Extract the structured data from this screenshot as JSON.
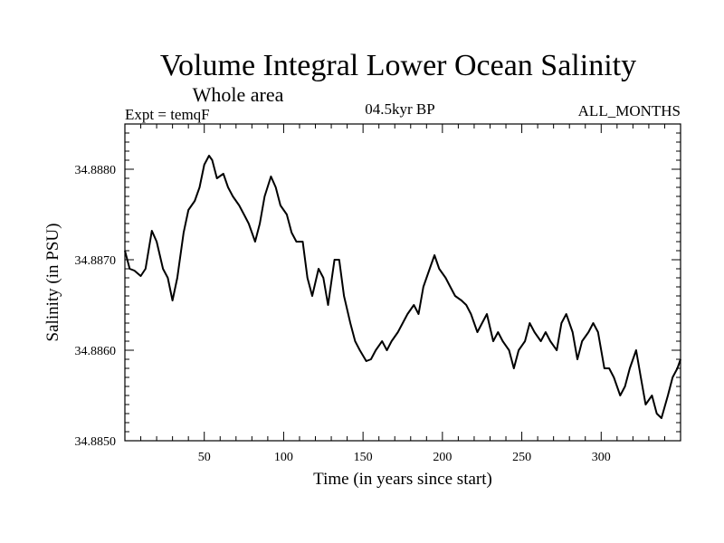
{
  "chart_data": {
    "type": "line",
    "title": "Volume Integral Lower Ocean Salinity",
    "subtitle": "Whole area",
    "experiment": "Expt = temqF",
    "period": "04.5kyr BP",
    "months": "ALL_MONTHS",
    "xlabel": "Time (in years since start)",
    "ylabel": "Salinity (in PSU)",
    "xlim": [
      0,
      350
    ],
    "ylim": [
      34.885,
      34.8885
    ],
    "xticks": [
      50,
      100,
      150,
      200,
      250,
      300
    ],
    "xtick_labels": [
      "50",
      "100",
      "150",
      "200",
      "250",
      "300"
    ],
    "yticks": [
      34.885,
      34.886,
      34.887,
      34.888
    ],
    "ytick_labels": [
      "34.8850",
      "34.8860",
      "34.8870",
      "34.8880"
    ],
    "grid": false,
    "series": [
      {
        "name": "salinity",
        "x": [
          0,
          3,
          6,
          10,
          13,
          17,
          20,
          24,
          27,
          30,
          33,
          37,
          40,
          44,
          47,
          50,
          53,
          55,
          58,
          62,
          65,
          68,
          72,
          75,
          78,
          82,
          85,
          88,
          92,
          95,
          98,
          102,
          105,
          108,
          112,
          115,
          118,
          122,
          125,
          128,
          132,
          135,
          138,
          142,
          145,
          148,
          152,
          155,
          158,
          162,
          165,
          168,
          172,
          175,
          178,
          182,
          185,
          188,
          192,
          195,
          198,
          202,
          205,
          208,
          212,
          215,
          218,
          222,
          225,
          228,
          232,
          235,
          238,
          242,
          245,
          248,
          252,
          255,
          258,
          262,
          265,
          268,
          272,
          275,
          278,
          282,
          285,
          288,
          292,
          295,
          298,
          302,
          305,
          308,
          312,
          315,
          318,
          322,
          325,
          328,
          332,
          335,
          338,
          342,
          345,
          348,
          350
        ],
        "y": [
          34.8871,
          34.8869,
          34.88688,
          34.88682,
          34.8869,
          34.88732,
          34.8872,
          34.8869,
          34.8868,
          34.88655,
          34.8868,
          34.8873,
          34.88755,
          34.88765,
          34.8878,
          34.88805,
          34.88815,
          34.8881,
          34.8879,
          34.88795,
          34.8878,
          34.8877,
          34.8876,
          34.8875,
          34.8874,
          34.8872,
          34.8874,
          34.8877,
          34.88792,
          34.8878,
          34.8876,
          34.8875,
          34.8873,
          34.8872,
          34.8872,
          34.8868,
          34.8866,
          34.8869,
          34.8868,
          34.8865,
          34.887,
          34.887,
          34.8866,
          34.8863,
          34.8861,
          34.886,
          34.88588,
          34.8859,
          34.886,
          34.8861,
          34.886,
          34.8861,
          34.8862,
          34.8863,
          34.8864,
          34.8865,
          34.8864,
          34.8867,
          34.8869,
          34.88705,
          34.8869,
          34.8868,
          34.8867,
          34.8866,
          34.88655,
          34.8865,
          34.8864,
          34.8862,
          34.8863,
          34.8864,
          34.8861,
          34.8862,
          34.8861,
          34.886,
          34.8858,
          34.886,
          34.8861,
          34.8863,
          34.8862,
          34.8861,
          34.8862,
          34.8861,
          34.886,
          34.8863,
          34.8864,
          34.8862,
          34.8859,
          34.8861,
          34.8862,
          34.8863,
          34.8862,
          34.8858,
          34.8858,
          34.8857,
          34.8855,
          34.8856,
          34.8858,
          34.886,
          34.8857,
          34.8854,
          34.8855,
          34.8853,
          34.88525,
          34.8855,
          34.8857,
          34.8858,
          34.8859
        ]
      }
    ]
  }
}
